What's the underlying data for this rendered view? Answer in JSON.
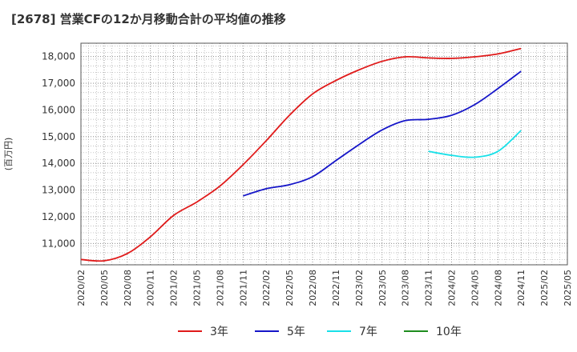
{
  "chart_data": {
    "type": "line",
    "title": "[2678]  営業CFの12か月移動合計の平均値の推移",
    "ylabel": "(百万円)",
    "xlabel": "",
    "ylim": [
      10200,
      18500
    ],
    "yticks": [
      11000,
      12000,
      13000,
      14000,
      15000,
      16000,
      17000,
      18000
    ],
    "ytick_labels": [
      "11,000",
      "12,000",
      "13,000",
      "14,000",
      "15,000",
      "16,000",
      "17,000",
      "18,000"
    ],
    "x_categories": [
      "2020/02",
      "2020/05",
      "2020/08",
      "2020/11",
      "2021/02",
      "2021/05",
      "2021/08",
      "2021/11",
      "2022/02",
      "2022/05",
      "2022/08",
      "2022/11",
      "2023/02",
      "2023/05",
      "2023/08",
      "2023/11",
      "2024/02",
      "2024/05",
      "2024/08",
      "2024/11",
      "2025/02",
      "2025/05"
    ],
    "grid": true,
    "legend_position": "bottom",
    "series": [
      {
        "name": "3年",
        "color": "#e01a1a",
        "x": [
          "2020/02",
          "2020/05",
          "2020/08",
          "2020/11",
          "2021/02",
          "2021/05",
          "2021/08",
          "2021/11",
          "2022/02",
          "2022/05",
          "2022/08",
          "2022/11",
          "2023/02",
          "2023/05",
          "2023/08",
          "2023/11",
          "2024/02",
          "2024/05",
          "2024/08",
          "2024/11"
        ],
        "values": [
          10400,
          10350,
          10620,
          11250,
          12050,
          12550,
          13150,
          13950,
          14850,
          15800,
          16600,
          17100,
          17500,
          17820,
          17990,
          17950,
          17930,
          17990,
          18100,
          18300
        ]
      },
      {
        "name": "5年",
        "color": "#1515c8",
        "x": [
          "2021/11",
          "2022/02",
          "2022/05",
          "2022/08",
          "2022/11",
          "2023/02",
          "2023/05",
          "2023/08",
          "2023/11",
          "2024/02",
          "2024/05",
          "2024/08",
          "2024/11"
        ],
        "values": [
          12780,
          13050,
          13200,
          13500,
          14100,
          14700,
          15250,
          15600,
          15650,
          15800,
          16200,
          16800,
          17450
        ]
      },
      {
        "name": "7年",
        "color": "#19e0e8",
        "x": [
          "2023/11",
          "2024/02",
          "2024/05",
          "2024/08",
          "2024/11"
        ],
        "values": [
          14450,
          14300,
          14230,
          14450,
          15230
        ]
      },
      {
        "name": "10年",
        "color": "#1e8c1e",
        "x": [],
        "values": []
      }
    ]
  }
}
